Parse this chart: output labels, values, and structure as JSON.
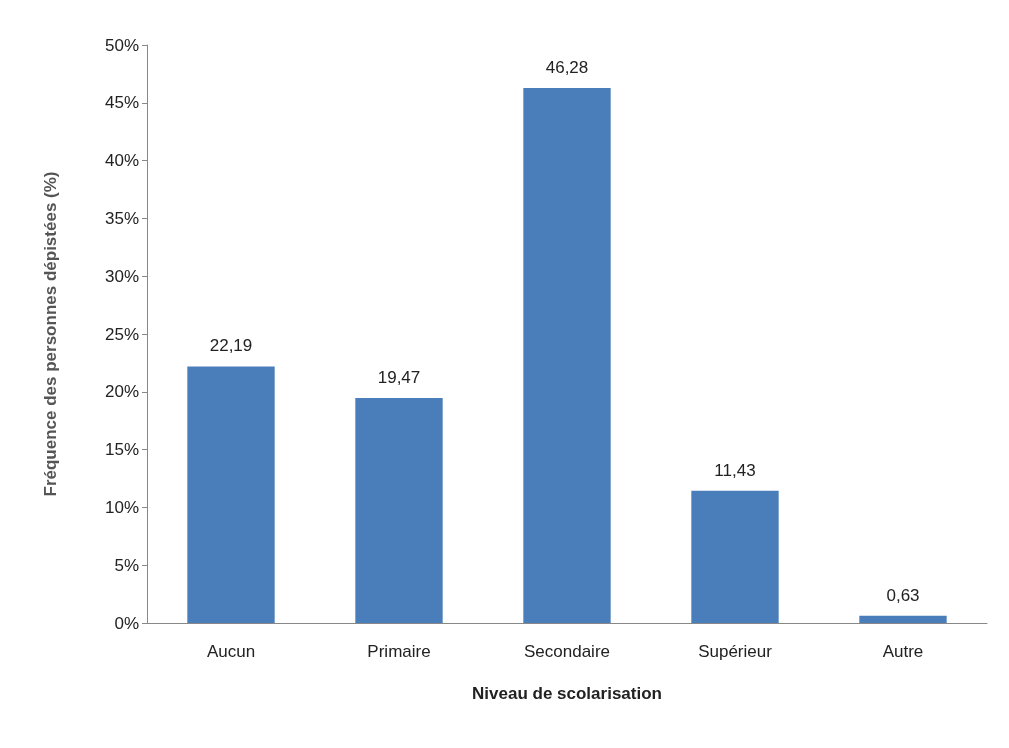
{
  "chart_data": {
    "type": "bar",
    "xlabel": "Niveau de scolarisation",
    "ylabel": "Fréquence des personnes dépistées (%)",
    "categories": [
      "Aucun",
      "Primaire",
      "Secondaire",
      "Supérieur",
      "Autre"
    ],
    "values": [
      22.19,
      19.47,
      46.28,
      11.43,
      0.63
    ],
    "value_labels": [
      "22,19",
      "19,47",
      "46,28",
      "11,43",
      "0,63"
    ],
    "color": "#4a7ebb",
    "ylim": [
      0,
      50
    ],
    "yticks": [
      {
        "value": 0,
        "label": "0%"
      },
      {
        "value": 5,
        "label": "5%"
      },
      {
        "value": 10,
        "label": "10%"
      },
      {
        "value": 15,
        "label": "15%"
      },
      {
        "value": 20,
        "label": "20%"
      },
      {
        "value": 25,
        "label": "25%"
      },
      {
        "value": 30,
        "label": "30%"
      },
      {
        "value": 35,
        "label": "35%"
      },
      {
        "value": 40,
        "label": "40%"
      },
      {
        "value": 45,
        "label": "45%"
      },
      {
        "value": 50,
        "label": "50%"
      }
    ]
  }
}
